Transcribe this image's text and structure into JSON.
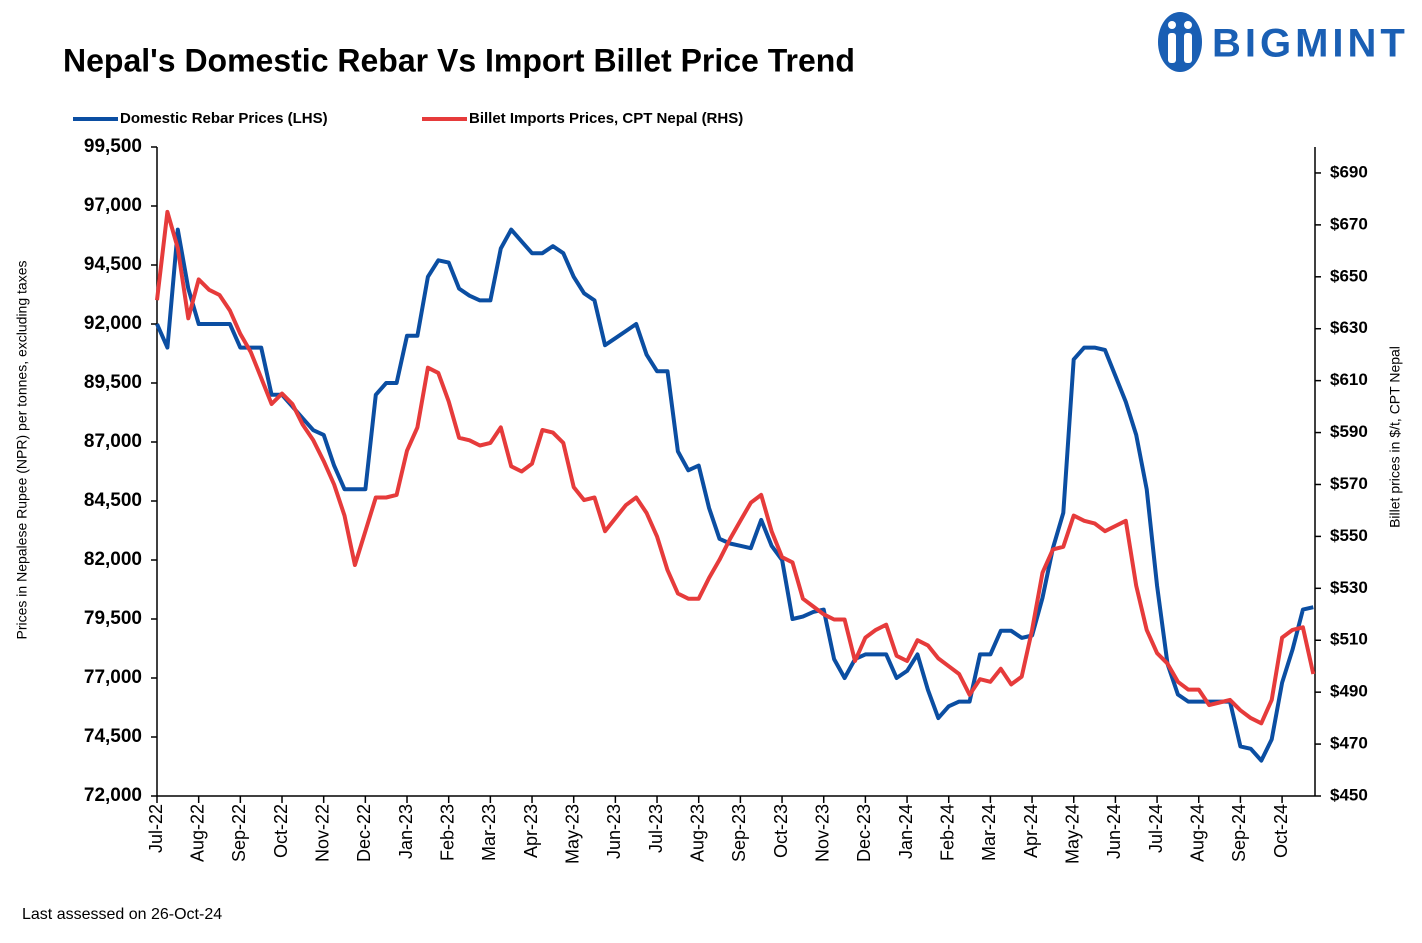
{
  "chart_data": {
    "type": "line",
    "title": "Nepal's Domestic Rebar Vs Import Billet Price Trend",
    "logo": "BIGMINT",
    "footnote": "Last assessed on 26-Oct-24",
    "ylabel": "Prices in Nepalese Rupee (NPR) per tonnes, excluding taxes",
    "y2label": "Billet prices in $/t, CPT Nepal",
    "categories": [
      "Jul-22",
      null,
      null,
      null,
      "Aug-22",
      null,
      null,
      null,
      "Sep-22",
      null,
      null,
      null,
      "Oct-22",
      null,
      null,
      null,
      "Nov-22",
      null,
      null,
      null,
      "Dec-22",
      null,
      null,
      null,
      "Jan-23",
      null,
      null,
      null,
      "Feb-23",
      null,
      null,
      null,
      "Mar-23",
      null,
      null,
      null,
      "Apr-23",
      null,
      null,
      null,
      "May-23",
      null,
      null,
      null,
      "Jun-23",
      null,
      null,
      null,
      "Jul-23",
      null,
      null,
      null,
      "Aug-23",
      null,
      null,
      null,
      "Sep-23",
      null,
      null,
      null,
      "Oct-23",
      null,
      null,
      null,
      "Nov-23",
      null,
      null,
      null,
      "Dec-23",
      null,
      null,
      null,
      "Jan-24",
      null,
      null,
      null,
      "Feb-24",
      null,
      null,
      null,
      "Mar-24",
      null,
      null,
      null,
      "Apr-24",
      null,
      null,
      null,
      "May-24",
      null,
      null,
      null,
      "Jun-24",
      null,
      null,
      null,
      "Jul-24",
      null,
      null,
      null,
      "Aug-24",
      null,
      null,
      null,
      "Sep-24",
      null,
      null,
      null,
      "Oct-24",
      null,
      null,
      null
    ],
    "series": [
      {
        "name": "Domestic Rebar Prices (LHS)",
        "color": "#0b4ea2",
        "axis": "y",
        "values": [
          92000,
          91000,
          96000,
          93500,
          92000,
          92000,
          92000,
          92000,
          91000,
          91000,
          91000,
          89000,
          89000,
          88500,
          88000,
          87500,
          87300,
          86000,
          85000,
          85000,
          85000,
          89000,
          89500,
          89500,
          91500,
          91500,
          94000,
          94700,
          94600,
          93500,
          93200,
          93000,
          93000,
          95200,
          96000,
          95500,
          95000,
          95000,
          95300,
          95000,
          94000,
          93300,
          93000,
          91100,
          91400,
          91700,
          92000,
          90700,
          90000,
          90000,
          86600,
          85800,
          86000,
          84200,
          82900,
          82700,
          82600,
          82500,
          83700,
          82600,
          82000,
          79500,
          79600,
          79800,
          79900,
          77800,
          77000,
          77800,
          78000,
          78000,
          78000,
          77000,
          77300,
          78000,
          76500,
          75300,
          75800,
          76000,
          76000,
          78000,
          78000,
          79000,
          79000,
          78700,
          78800,
          80400,
          82500,
          84000,
          90500,
          91000,
          91000,
          90900,
          89800,
          88700,
          87300,
          85000,
          80900,
          77600,
          76300,
          76000,
          76000,
          76000,
          76000,
          76000,
          74100,
          74000,
          73500,
          74400,
          76800,
          78200,
          79900,
          80000
        ]
      },
      {
        "name": "Billet Imports Prices, CPT Nepal (RHS)",
        "color": "#e63b3b",
        "axis": "y2",
        "values": [
          641,
          675,
          661,
          634,
          649,
          645,
          643,
          637,
          628,
          621,
          611,
          601,
          605,
          601,
          593,
          587,
          579,
          570,
          558,
          539,
          552,
          565,
          565,
          566,
          583,
          592,
          615,
          613,
          602,
          588,
          587,
          585,
          586,
          592,
          577,
          575,
          578,
          591,
          590,
          586,
          569,
          564,
          565,
          552,
          557,
          562,
          565,
          559,
          550,
          537,
          528,
          526,
          526,
          534,
          541,
          549,
          556,
          563,
          566,
          552,
          542,
          540,
          526,
          523,
          520,
          518,
          518,
          502,
          511,
          514,
          516,
          504,
          502,
          510,
          508,
          503,
          500,
          497,
          489,
          495,
          494,
          499,
          493,
          496,
          514,
          536,
          545,
          546,
          558,
          556,
          555,
          552,
          554,
          556,
          531,
          514,
          505,
          501,
          494,
          491,
          491,
          485,
          486,
          487,
          483,
          480,
          478,
          487,
          511,
          514,
          515,
          497
        ]
      }
    ],
    "ylim": [
      72000,
      99500
    ],
    "yticks": [
      {
        "value": 72000,
        "label": "72,000"
      },
      {
        "value": 74500,
        "label": "74,500"
      },
      {
        "value": 77000,
        "label": "77,000"
      },
      {
        "value": 79500,
        "label": "79,500"
      },
      {
        "value": 82000,
        "label": "82,000"
      },
      {
        "value": 84500,
        "label": "84,500"
      },
      {
        "value": 87000,
        "label": "87,000"
      },
      {
        "value": 89500,
        "label": "89,500"
      },
      {
        "value": 92000,
        "label": "92,000"
      },
      {
        "value": 94500,
        "label": "94,500"
      },
      {
        "value": 97000,
        "label": "97,000"
      },
      {
        "value": 99500,
        "label": "99,500"
      }
    ],
    "y2lim": [
      450,
      700
    ],
    "y2ticks": [
      {
        "value": 450,
        "label": "$450"
      },
      {
        "value": 470,
        "label": "$470"
      },
      {
        "value": 490,
        "label": "$490"
      },
      {
        "value": 510,
        "label": "$510"
      },
      {
        "value": 530,
        "label": "$530"
      },
      {
        "value": 550,
        "label": "$550"
      },
      {
        "value": 570,
        "label": "$570"
      },
      {
        "value": 590,
        "label": "$590"
      },
      {
        "value": 610,
        "label": "$610"
      },
      {
        "value": 630,
        "label": "$630"
      },
      {
        "value": 650,
        "label": "$650"
      },
      {
        "value": 670,
        "label": "$670"
      },
      {
        "value": 690,
        "label": "$690"
      }
    ],
    "grid": false,
    "legend": "top"
  }
}
